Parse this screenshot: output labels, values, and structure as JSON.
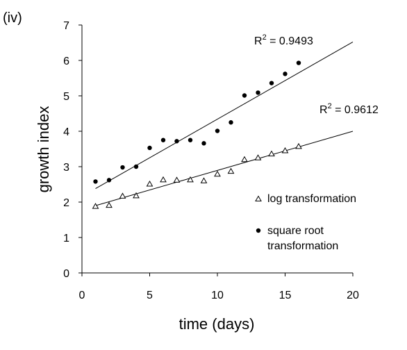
{
  "panel_label": "(iv)",
  "chart_data": {
    "type": "scatter",
    "xlabel": "time (days)",
    "ylabel": "growth index",
    "xlim": [
      0,
      20
    ],
    "ylim": [
      0,
      7
    ],
    "xticks": [
      "0",
      "5",
      "10",
      "15",
      "20"
    ],
    "yticks": [
      "0",
      "1",
      "2",
      "3",
      "4",
      "5",
      "6",
      "7"
    ],
    "grid": false,
    "legend_placement": "lower-right",
    "series": [
      {
        "name": "square root transformation",
        "marker": "filled-circle",
        "x": [
          1,
          2,
          3,
          4,
          5,
          6,
          7,
          8,
          9,
          10,
          11,
          12,
          13,
          14,
          15,
          16
        ],
        "y": [
          2.58,
          2.62,
          2.98,
          3.0,
          3.53,
          3.75,
          3.72,
          3.75,
          3.66,
          4.01,
          4.25,
          5.01,
          5.09,
          5.36,
          5.62,
          5.93
        ],
        "trendline": {
          "x": [
            1,
            20
          ],
          "y": [
            2.38,
            6.52
          ]
        },
        "r2_label": "R",
        "r2_sup": "2",
        "r2_value": " = 0.9493"
      },
      {
        "name": "log transformation",
        "marker": "open-triangle",
        "x": [
          1,
          2,
          3,
          4,
          5,
          6,
          7,
          8,
          9,
          10,
          11,
          12,
          13,
          14,
          15,
          16
        ],
        "y": [
          1.88,
          1.91,
          2.17,
          2.18,
          2.51,
          2.63,
          2.62,
          2.63,
          2.6,
          2.79,
          2.87,
          3.2,
          3.25,
          3.36,
          3.45,
          3.57
        ],
        "trendline": {
          "x": [
            1,
            20
          ],
          "y": [
            1.9,
            4.0
          ]
        },
        "r2_label": "R",
        "r2_sup": "2",
        "r2_value": " = 0.9612"
      }
    ],
    "legend": [
      {
        "marker": "open-triangle",
        "lines": [
          "log transformation"
        ]
      },
      {
        "marker": "filled-circle",
        "lines": [
          "square root",
          "transformation"
        ]
      }
    ]
  }
}
